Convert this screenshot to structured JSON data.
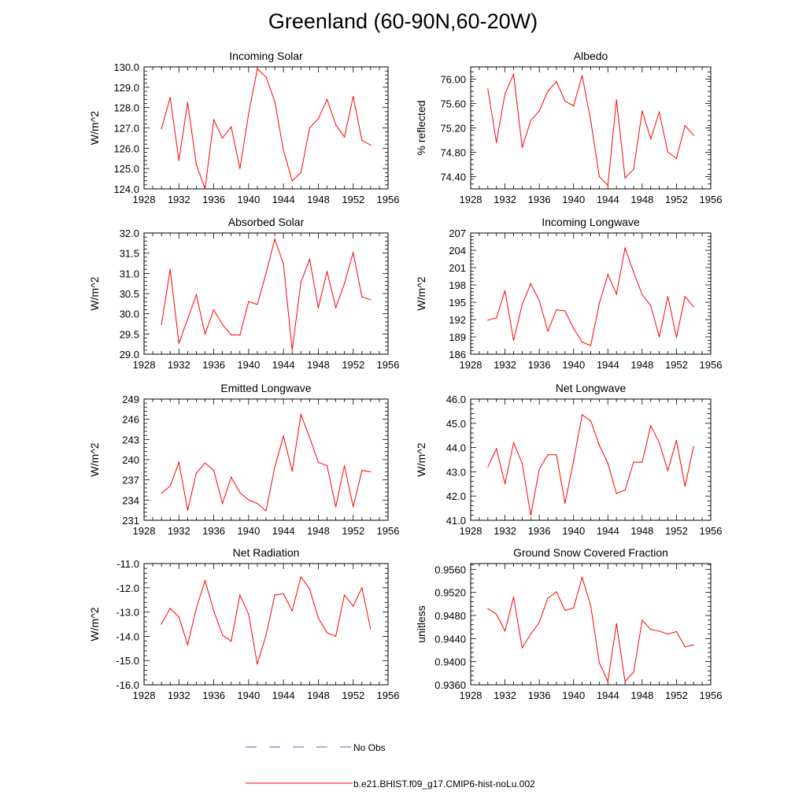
{
  "figure": {
    "title": "Greenland (60-90N,60-20W)"
  },
  "legend": {
    "items": [
      {
        "label": "No Obs",
        "color": "#5a5ac8",
        "style": "dashed"
      },
      {
        "label": "b.e21.BHIST.f09_g17.CMIP6-hist-noLu.002",
        "color": "#ff0000",
        "style": "solid"
      }
    ]
  },
  "chart_data": [
    {
      "type": "line",
      "title": "Incoming Solar",
      "xlabel": "",
      "ylabel": "W/m^2",
      "xlim": [
        1928,
        1956
      ],
      "ylim": [
        124.0,
        130.0
      ],
      "xticks": [
        1928,
        1932,
        1936,
        1940,
        1944,
        1948,
        1952,
        1956
      ],
      "yticks": [
        124.0,
        125.0,
        126.0,
        127.0,
        128.0,
        129.0,
        130.0
      ],
      "ydecimals": 1,
      "series": [
        {
          "name": "b.e21.BHIST.f09_g17.CMIP6-hist-noLu.002",
          "color": "#ff0000",
          "x": [
            1930,
            1931,
            1932,
            1933,
            1934,
            1935,
            1936,
            1937,
            1938,
            1939,
            1940,
            1941,
            1942,
            1943,
            1944,
            1945,
            1946,
            1947,
            1948,
            1949,
            1950,
            1951,
            1952,
            1953,
            1954
          ],
          "y": [
            126.95,
            128.5,
            125.4,
            128.25,
            125.2,
            124.0,
            127.4,
            126.5,
            127.05,
            125.0,
            127.7,
            129.9,
            129.5,
            128.3,
            125.9,
            124.4,
            124.8,
            127.0,
            127.45,
            128.4,
            127.15,
            126.55,
            128.55,
            126.4,
            126.15
          ]
        }
      ]
    },
    {
      "type": "line",
      "title": "Albedo",
      "xlabel": "",
      "ylabel": "% reflected",
      "xlim": [
        1928,
        1956
      ],
      "ylim": [
        74.2,
        76.2
      ],
      "xticks": [
        1928,
        1932,
        1936,
        1940,
        1944,
        1948,
        1952,
        1956
      ],
      "yticks": [
        74.4,
        74.8,
        75.2,
        75.6,
        76.0
      ],
      "ydecimals": 2,
      "series": [
        {
          "name": "b.e21.BHIST.f09_g17.CMIP6-hist-noLu.002",
          "color": "#ff0000",
          "x": [
            1930,
            1931,
            1932,
            1933,
            1934,
            1935,
            1936,
            1937,
            1938,
            1939,
            1940,
            1941,
            1942,
            1943,
            1944,
            1945,
            1946,
            1947,
            1948,
            1949,
            1950,
            1951,
            1952,
            1953,
            1954
          ],
          "y": [
            75.84,
            74.96,
            75.76,
            76.08,
            74.88,
            75.32,
            75.48,
            75.8,
            75.96,
            75.64,
            75.56,
            76.06,
            75.32,
            74.4,
            74.26,
            75.66,
            74.38,
            74.52,
            75.48,
            75.02,
            75.46,
            74.8,
            74.7,
            75.24,
            75.08
          ]
        }
      ]
    },
    {
      "type": "line",
      "title": "Absorbed Solar",
      "xlabel": "",
      "ylabel": "W/m^2",
      "xlim": [
        1928,
        1956
      ],
      "ylim": [
        29.0,
        32.0
      ],
      "xticks": [
        1928,
        1932,
        1936,
        1940,
        1944,
        1948,
        1952,
        1956
      ],
      "yticks": [
        29.0,
        29.5,
        30.0,
        30.5,
        31.0,
        31.5,
        32.0
      ],
      "ydecimals": 1,
      "series": [
        {
          "name": "b.e21.BHIST.f09_g17.CMIP6-hist-noLu.002",
          "color": "#ff0000",
          "x": [
            1930,
            1931,
            1932,
            1933,
            1934,
            1935,
            1936,
            1937,
            1938,
            1939,
            1940,
            1941,
            1942,
            1943,
            1944,
            1945,
            1946,
            1947,
            1948,
            1949,
            1950,
            1951,
            1952,
            1953,
            1954
          ],
          "y": [
            29.73,
            31.1,
            29.27,
            29.87,
            30.47,
            29.5,
            30.1,
            29.73,
            29.48,
            29.47,
            30.3,
            30.23,
            31.0,
            31.85,
            31.23,
            29.1,
            30.78,
            31.35,
            30.15,
            31.05,
            30.15,
            30.75,
            31.52,
            30.42,
            30.35
          ]
        }
      ]
    },
    {
      "type": "line",
      "title": "Incoming Longwave",
      "xlabel": "",
      "ylabel": "W/m^2",
      "xlim": [
        1928,
        1956
      ],
      "ylim": [
        186,
        207
      ],
      "xticks": [
        1928,
        1932,
        1936,
        1940,
        1944,
        1948,
        1952,
        1956
      ],
      "yticks": [
        186,
        189,
        192,
        195,
        198,
        201,
        204,
        207
      ],
      "ydecimals": 0,
      "series": [
        {
          "name": "b.e21.BHIST.f09_g17.CMIP6-hist-noLu.002",
          "color": "#ff0000",
          "x": [
            1930,
            1931,
            1932,
            1933,
            1934,
            1935,
            1936,
            1937,
            1938,
            1939,
            1940,
            1941,
            1942,
            1943,
            1944,
            1945,
            1946,
            1947,
            1948,
            1949,
            1950,
            1951,
            1952,
            1953,
            1954
          ],
          "y": [
            191.9,
            192.3,
            197.0,
            188.4,
            194.6,
            198.2,
            195.3,
            190.0,
            193.7,
            193.5,
            190.5,
            188.1,
            187.5,
            194.8,
            199.8,
            196.4,
            204.4,
            200.2,
            196.3,
            194.4,
            189.0,
            196.0,
            188.9,
            196.0,
            194.2
          ]
        }
      ]
    },
    {
      "type": "line",
      "title": "Emitted Longwave",
      "xlabel": "",
      "ylabel": "W/m^2",
      "xlim": [
        1928,
        1956
      ],
      "ylim": [
        231,
        249
      ],
      "xticks": [
        1928,
        1932,
        1936,
        1940,
        1944,
        1948,
        1952,
        1956
      ],
      "yticks": [
        231,
        234,
        237,
        240,
        243,
        246,
        249
      ],
      "ydecimals": 0,
      "series": [
        {
          "name": "b.e21.BHIST.f09_g17.CMIP6-hist-noLu.002",
          "color": "#ff0000",
          "x": [
            1930,
            1931,
            1932,
            1933,
            1934,
            1935,
            1936,
            1937,
            1938,
            1939,
            1940,
            1941,
            1942,
            1943,
            1944,
            1945,
            1946,
            1947,
            1948,
            1949,
            1950,
            1951,
            1952,
            1953,
            1954
          ],
          "y": [
            235.0,
            236.1,
            239.6,
            232.5,
            238.0,
            239.5,
            238.4,
            233.5,
            237.4,
            235.1,
            234.0,
            233.5,
            232.4,
            238.9,
            243.5,
            238.3,
            246.7,
            243.3,
            239.6,
            239.1,
            233.0,
            239.1,
            233.0,
            238.4,
            238.2
          ]
        }
      ]
    },
    {
      "type": "line",
      "title": "Net Longwave",
      "xlabel": "",
      "ylabel": "W/m^2",
      "xlim": [
        1928,
        1956
      ],
      "ylim": [
        41.0,
        46.0
      ],
      "xticks": [
        1928,
        1932,
        1936,
        1940,
        1944,
        1948,
        1952,
        1956
      ],
      "yticks": [
        41.0,
        42.0,
        43.0,
        44.0,
        45.0,
        46.0
      ],
      "ydecimals": 1,
      "series": [
        {
          "name": "b.e21.BHIST.f09_g17.CMIP6-hist-noLu.002",
          "color": "#ff0000",
          "x": [
            1930,
            1931,
            1932,
            1933,
            1934,
            1935,
            1936,
            1937,
            1938,
            1939,
            1940,
            1941,
            1942,
            1943,
            1944,
            1945,
            1946,
            1947,
            1948,
            1949,
            1950,
            1951,
            1952,
            1953,
            1954
          ],
          "y": [
            43.2,
            43.95,
            42.5,
            44.2,
            43.35,
            41.2,
            43.1,
            43.7,
            43.7,
            41.7,
            43.45,
            45.35,
            45.1,
            44.1,
            43.35,
            42.1,
            42.25,
            43.4,
            43.4,
            44.9,
            44.2,
            43.05,
            44.3,
            42.4,
            44.05
          ]
        }
      ]
    },
    {
      "type": "line",
      "title": "Net Radiation",
      "xlabel": "",
      "ylabel": "W/m^2",
      "xlim": [
        1928,
        1956
      ],
      "ylim": [
        -16.0,
        -11.0
      ],
      "xticks": [
        1928,
        1932,
        1936,
        1940,
        1944,
        1948,
        1952,
        1956
      ],
      "yticks": [
        -16.0,
        -15.0,
        -14.0,
        -13.0,
        -12.0,
        -11.0
      ],
      "ydecimals": 1,
      "series": [
        {
          "name": "b.e21.BHIST.f09_g17.CMIP6-hist-noLu.002",
          "color": "#ff0000",
          "x": [
            1930,
            1931,
            1932,
            1933,
            1934,
            1935,
            1936,
            1937,
            1938,
            1939,
            1940,
            1941,
            1942,
            1943,
            1944,
            1945,
            1946,
            1947,
            1948,
            1949,
            1950,
            1951,
            1952,
            1953,
            1954
          ],
          "y": [
            -13.5,
            -12.85,
            -13.2,
            -14.35,
            -12.85,
            -11.7,
            -12.95,
            -13.95,
            -14.2,
            -12.3,
            -13.1,
            -15.15,
            -13.95,
            -12.3,
            -12.25,
            -12.95,
            -11.55,
            -12.05,
            -13.25,
            -13.85,
            -14.0,
            -12.3,
            -12.75,
            -12.0,
            -13.7
          ]
        }
      ]
    },
    {
      "type": "line",
      "title": "Ground Snow Covered Fraction",
      "xlabel": "",
      "ylabel": "unitless",
      "xlim": [
        1928,
        1956
      ],
      "ylim": [
        0.936,
        0.957
      ],
      "xticks": [
        1928,
        1932,
        1936,
        1940,
        1944,
        1948,
        1952,
        1956
      ],
      "yticks": [
        0.936,
        0.94,
        0.944,
        0.948,
        0.952,
        0.956
      ],
      "ydecimals": 4,
      "series": [
        {
          "name": "b.e21.BHIST.f09_g17.CMIP6-hist-noLu.002",
          "color": "#ff0000",
          "x": [
            1930,
            1931,
            1932,
            1933,
            1934,
            1935,
            1936,
            1937,
            1938,
            1939,
            1940,
            1941,
            1942,
            1943,
            1944,
            1945,
            1946,
            1947,
            1948,
            1949,
            1950,
            1951,
            1952,
            1953,
            1954
          ],
          "y": [
            0.9492,
            0.9482,
            0.9453,
            0.9512,
            0.9424,
            0.9448,
            0.9468,
            0.951,
            0.9521,
            0.9489,
            0.9493,
            0.9546,
            0.9497,
            0.9398,
            0.9366,
            0.9466,
            0.9366,
            0.9382,
            0.9472,
            0.9456,
            0.9453,
            0.9448,
            0.9452,
            0.9426,
            0.9429
          ]
        }
      ]
    }
  ]
}
